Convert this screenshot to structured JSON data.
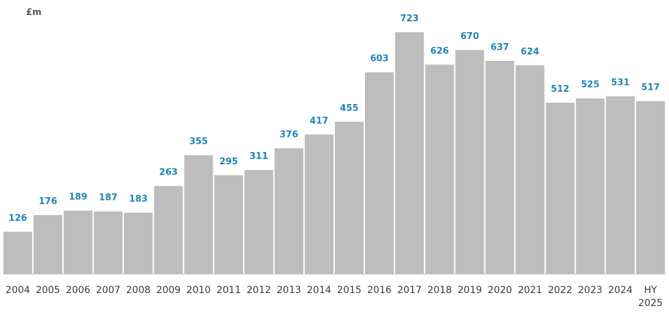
{
  "chart_data": {
    "type": "bar",
    "title": "",
    "xlabel": "",
    "ylabel": "£m",
    "categories": [
      "2004",
      "2005",
      "2006",
      "2007",
      "2008",
      "2009",
      "2010",
      "2011",
      "2012",
      "2013",
      "2014",
      "2015",
      "2016",
      "2017",
      "2018",
      "2019",
      "2020",
      "2021",
      "2022",
      "2023",
      "2024",
      "HY 2025"
    ],
    "values": [
      126,
      176,
      189,
      187,
      183,
      263,
      355,
      295,
      311,
      376,
      417,
      455,
      603,
      723,
      626,
      670,
      637,
      624,
      512,
      525,
      531,
      517
    ],
    "ylim": [
      0,
      760
    ],
    "grid": false,
    "legend": "none",
    "bar_color": "#bdbdbd",
    "label_color": "#1f86b5"
  }
}
